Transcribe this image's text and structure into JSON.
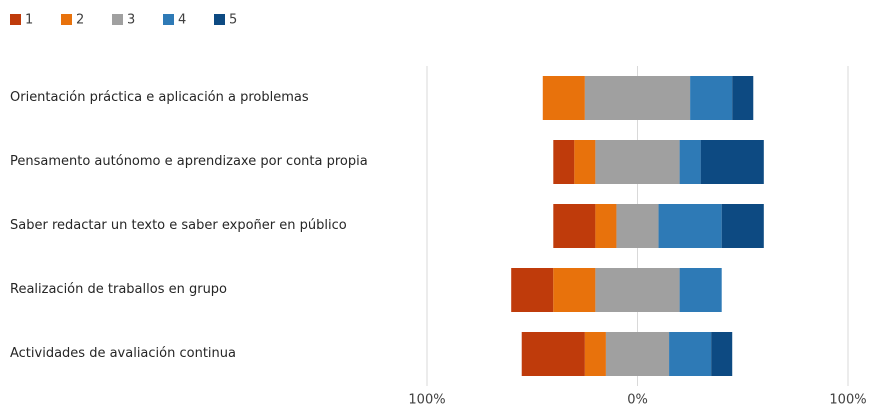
{
  "chart_data": {
    "type": "diverging_stacked_bar",
    "categories": [
      "Orientación práctica e aplicación a problemas",
      "Pensamento autónomo e aprendizaxe por conta propia",
      "Saber redactar un texto e saber expoñer en público",
      "Realización de traballos en grupo",
      "Actividades de avaliación continua"
    ],
    "series": [
      {
        "name": "1",
        "color": "#bf3b0b",
        "values": [
          0,
          10,
          20,
          20,
          30
        ]
      },
      {
        "name": "2",
        "color": "#e8720c",
        "values": [
          20,
          10,
          10,
          20,
          10
        ]
      },
      {
        "name": "3",
        "color": "#a0a0a0",
        "values": [
          50,
          40,
          20,
          40,
          30
        ]
      },
      {
        "name": "4",
        "color": "#2e7ab6",
        "values": [
          20,
          10,
          30,
          20,
          20
        ]
      },
      {
        "name": "5",
        "color": "#0d4a82",
        "values": [
          10,
          30,
          20,
          0,
          10
        ]
      }
    ],
    "neutral_series": 2,
    "xlim": [
      -100,
      100
    ],
    "xticks": [
      {
        "value": -100,
        "label": "100%"
      },
      {
        "value": 0,
        "label": "0%"
      },
      {
        "value": 100,
        "label": "100%"
      }
    ],
    "grid": true,
    "legend": "top-left"
  }
}
